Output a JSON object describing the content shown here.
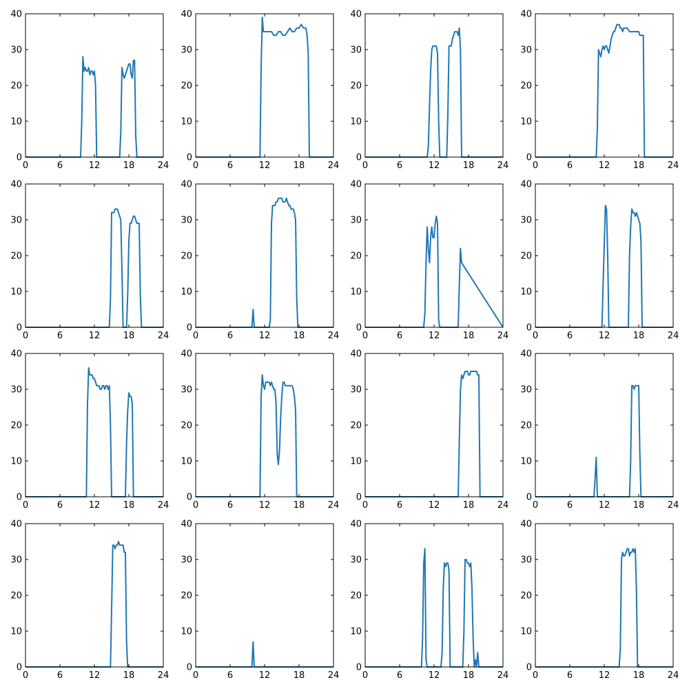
{
  "figure": {
    "rows": 4,
    "cols": 4,
    "line_color": "#1f77b4"
  },
  "chart_data": [
    {
      "type": "line",
      "xlim": [
        0,
        24
      ],
      "ylim": [
        0,
        40
      ],
      "xticks": [
        "0",
        "6",
        "12",
        "18",
        "24"
      ],
      "yticks": [
        "0",
        "10",
        "20",
        "30",
        "40"
      ],
      "x": [
        0,
        9.6,
        9.8,
        10.0,
        10.2,
        10.4,
        10.6,
        10.8,
        11.0,
        11.2,
        11.4,
        11.6,
        11.8,
        12.0,
        12.2,
        12.4,
        16.4,
        16.6,
        16.8,
        17.0,
        17.2,
        17.4,
        17.6,
        17.8,
        18.0,
        18.2,
        18.4,
        18.6,
        18.8,
        19.0,
        19.2,
        19.4,
        19.6,
        24
      ],
      "y": [
        0,
        0,
        10,
        28,
        24,
        25,
        24,
        24,
        25,
        23,
        24,
        24,
        23,
        24,
        20,
        0,
        0,
        7,
        25,
        23,
        22,
        23,
        24,
        25,
        26,
        26,
        23,
        22,
        27,
        27,
        6,
        0,
        0,
        0
      ]
    },
    {
      "type": "line",
      "xlim": [
        0,
        24
      ],
      "ylim": [
        0,
        40
      ],
      "xticks": [
        "0",
        "6",
        "12",
        "18",
        "24"
      ],
      "yticks": [
        "0",
        "10",
        "20",
        "30",
        "40"
      ],
      "x": [
        0,
        11.2,
        11.4,
        11.6,
        11.8,
        12.0,
        12.4,
        12.8,
        13.2,
        13.6,
        14.0,
        14.4,
        14.8,
        15.2,
        15.6,
        16.0,
        16.4,
        16.8,
        17.2,
        17.6,
        18.0,
        18.4,
        18.8,
        19.2,
        19.4,
        19.6,
        19.8,
        24
      ],
      "y": [
        0,
        0,
        25,
        39,
        35,
        35,
        35,
        35,
        35,
        34,
        34,
        35,
        35,
        34,
        34,
        35,
        36,
        35,
        35,
        36,
        36,
        37,
        36,
        36,
        34,
        29,
        0,
        0
      ]
    },
    {
      "type": "line",
      "xlim": [
        0,
        24
      ],
      "ylim": [
        0,
        40
      ],
      "xticks": [
        "0",
        "6",
        "12",
        "18",
        "24"
      ],
      "yticks": [
        "0",
        "10",
        "20",
        "30",
        "40"
      ],
      "x": [
        0,
        10.8,
        11.0,
        11.2,
        11.4,
        11.6,
        11.8,
        12.0,
        12.2,
        12.4,
        12.6,
        12.8,
        13.0,
        13.2,
        14.2,
        14.4,
        14.6,
        14.8,
        15.0,
        15.2,
        15.4,
        15.6,
        15.8,
        16.0,
        16.2,
        16.4,
        16.6,
        16.8,
        24
      ],
      "y": [
        0,
        0,
        3,
        14,
        24,
        30,
        31,
        31,
        31,
        31,
        29,
        10,
        0,
        0,
        0,
        12,
        31,
        31,
        31,
        33,
        34,
        35,
        35,
        35,
        34,
        36,
        30,
        0,
        0
      ]
    },
    {
      "type": "line",
      "xlim": [
        0,
        24
      ],
      "ylim": [
        0,
        40
      ],
      "xticks": [
        "0",
        "6",
        "12",
        "18",
        "24"
      ],
      "yticks": [
        "0",
        "10",
        "20",
        "30",
        "40"
      ],
      "x": [
        0,
        10.6,
        10.8,
        11.0,
        11.2,
        11.4,
        11.6,
        11.8,
        12.0,
        12.2,
        12.4,
        12.6,
        12.8,
        13.0,
        13.2,
        13.4,
        13.6,
        13.8,
        14.0,
        14.2,
        14.4,
        14.6,
        14.8,
        15.0,
        15.2,
        15.4,
        15.6,
        15.8,
        16.0,
        16.4,
        16.8,
        17.2,
        17.6,
        18.0,
        18.2,
        18.4,
        18.6,
        18.8,
        19.0,
        24
      ],
      "y": [
        0,
        0,
        8,
        30,
        29,
        28,
        30,
        31,
        30,
        31,
        31,
        30,
        29,
        31,
        33,
        34,
        35,
        35,
        36,
        37,
        37,
        37,
        36,
        36,
        35,
        36,
        36,
        36,
        36,
        35,
        35,
        35,
        35,
        35,
        34,
        34,
        34,
        34,
        0,
        0
      ]
    },
    {
      "type": "line",
      "xlim": [
        0,
        24
      ],
      "ylim": [
        0,
        40
      ],
      "xticks": [
        "0",
        "6",
        "12",
        "18",
        "24"
      ],
      "yticks": [
        "0",
        "10",
        "20",
        "30",
        "40"
      ],
      "x": [
        0,
        14.6,
        14.8,
        15.0,
        15.2,
        15.4,
        15.6,
        15.8,
        16.0,
        16.2,
        16.4,
        16.6,
        16.8,
        17.0,
        17.6,
        17.8,
        18.0,
        18.2,
        18.4,
        18.6,
        18.8,
        19.0,
        19.2,
        19.4,
        19.6,
        19.8,
        20.0,
        20.2,
        24
      ],
      "y": [
        0,
        0,
        8,
        32,
        32,
        32,
        33,
        33,
        33,
        32,
        31,
        30,
        16,
        0,
        0,
        9,
        24,
        29,
        29,
        30,
        31,
        31,
        30,
        29,
        29,
        29,
        9,
        0,
        0
      ]
    },
    {
      "type": "line",
      "xlim": [
        0,
        24
      ],
      "ylim": [
        0,
        40
      ],
      "xticks": [
        "0",
        "6",
        "12",
        "18",
        "24"
      ],
      "yticks": [
        "0",
        "10",
        "20",
        "30",
        "40"
      ],
      "x": [
        0,
        9.8,
        10.0,
        10.2,
        12.6,
        12.8,
        13.0,
        13.2,
        13.4,
        13.6,
        13.8,
        14.0,
        14.2,
        14.4,
        14.6,
        14.8,
        15.0,
        15.2,
        15.4,
        15.6,
        15.8,
        16.0,
        16.2,
        16.4,
        16.6,
        16.8,
        17.0,
        17.2,
        17.4,
        17.6,
        17.8,
        18.0,
        18.2,
        24
      ],
      "y": [
        0,
        0,
        5,
        0,
        0,
        0,
        2,
        29,
        34,
        34,
        34,
        35,
        35,
        36,
        36,
        36,
        36,
        35,
        35,
        35,
        36,
        35,
        34,
        34,
        33,
        33,
        33,
        32,
        30,
        8,
        0,
        0,
        0,
        0
      ]
    },
    {
      "type": "line",
      "xlim": [
        0,
        24
      ],
      "ylim": [
        0,
        40
      ],
      "xticks": [
        "0",
        "6",
        "12",
        "18",
        "24"
      ],
      "yticks": [
        "0",
        "10",
        "20",
        "30",
        "40"
      ],
      "x": [
        0,
        10.2,
        10.4,
        10.6,
        10.8,
        11.0,
        11.2,
        11.4,
        11.6,
        11.8,
        12.0,
        12.2,
        12.4,
        12.6,
        12.8,
        13.0,
        16.2,
        16.4,
        16.6,
        16.8,
        24
      ],
      "y": [
        0,
        0,
        4,
        18,
        28,
        22,
        18,
        25,
        28,
        25,
        25,
        29,
        31,
        29,
        2,
        0,
        0,
        12,
        22,
        18,
        0
      ]
    },
    {
      "type": "line",
      "xlim": [
        0,
        24
      ],
      "ylim": [
        0,
        40
      ],
      "xticks": [
        "0",
        "6",
        "12",
        "18",
        "24"
      ],
      "yticks": [
        "0",
        "10",
        "20",
        "30",
        "40"
      ],
      "x": [
        0,
        11.6,
        11.8,
        12.0,
        12.2,
        12.4,
        12.6,
        12.8,
        16.2,
        16.4,
        16.6,
        16.8,
        17.0,
        17.2,
        17.4,
        17.6,
        17.8,
        18.0,
        18.2,
        18.4,
        18.6,
        24
      ],
      "y": [
        0,
        0,
        12,
        23,
        34,
        33,
        20,
        0,
        0,
        20,
        28,
        33,
        32,
        32,
        31,
        32,
        31,
        30,
        29,
        24,
        0,
        0
      ]
    },
    {
      "type": "line",
      "xlim": [
        0,
        24
      ],
      "ylim": [
        0,
        40
      ],
      "xticks": [
        "0",
        "6",
        "12",
        "18",
        "24"
      ],
      "yticks": [
        "0",
        "10",
        "20",
        "30",
        "40"
      ],
      "x": [
        0,
        10.6,
        10.8,
        11.0,
        11.2,
        11.4,
        11.6,
        11.8,
        12.0,
        12.2,
        12.4,
        12.6,
        12.8,
        13.0,
        13.2,
        13.4,
        13.6,
        13.8,
        14.0,
        14.2,
        14.4,
        14.6,
        14.8,
        15.0,
        17.4,
        17.6,
        17.8,
        18.0,
        18.2,
        18.4,
        18.6,
        18.8,
        24
      ],
      "y": [
        0,
        0,
        26,
        36,
        34,
        34,
        34,
        33,
        33,
        32,
        31,
        31,
        31,
        30,
        30,
        31,
        31,
        30,
        31,
        31,
        30,
        31,
        20,
        0,
        0,
        15,
        24,
        29,
        28,
        28,
        26,
        0,
        0
      ]
    },
    {
      "type": "line",
      "xlim": [
        0,
        24
      ],
      "ylim": [
        0,
        40
      ],
      "xticks": [
        "0",
        "6",
        "12",
        "18",
        "24"
      ],
      "yticks": [
        "0",
        "10",
        "20",
        "30",
        "40"
      ],
      "x": [
        0,
        11.2,
        11.4,
        11.6,
        11.8,
        12.0,
        12.2,
        12.4,
        12.6,
        12.8,
        13.0,
        13.2,
        13.4,
        13.6,
        13.8,
        14.0,
        14.2,
        14.4,
        14.6,
        14.8,
        15.0,
        15.2,
        15.4,
        15.6,
        15.8,
        16.0,
        16.4,
        16.8,
        17.0,
        17.2,
        17.4,
        17.6,
        24
      ],
      "y": [
        0,
        0,
        28,
        34,
        31,
        30,
        32,
        32,
        32,
        32,
        31,
        32,
        31,
        30,
        30,
        26,
        12,
        9,
        13,
        22,
        28,
        32,
        32,
        31,
        31,
        31,
        31,
        31,
        30,
        28,
        24,
        0,
        0
      ]
    },
    {
      "type": "line",
      "xlim": [
        0,
        24
      ],
      "ylim": [
        0,
        40
      ],
      "xticks": [
        "0",
        "6",
        "12",
        "18",
        "24"
      ],
      "yticks": [
        "0",
        "10",
        "20",
        "30",
        "40"
      ],
      "x": [
        0,
        16.2,
        16.4,
        16.6,
        16.8,
        17.0,
        17.2,
        17.4,
        17.6,
        17.8,
        18.0,
        18.2,
        18.4,
        18.6,
        18.8,
        19.0,
        19.2,
        19.4,
        19.6,
        19.8,
        20.0,
        20.2,
        24
      ],
      "y": [
        0,
        0,
        16,
        30,
        34,
        33,
        34,
        35,
        35,
        35,
        34,
        34,
        35,
        35,
        35,
        35,
        35,
        35,
        34,
        34,
        0,
        0,
        0
      ]
    },
    {
      "type": "line",
      "xlim": [
        0,
        24
      ],
      "ylim": [
        0,
        40
      ],
      "xticks": [
        "0",
        "6",
        "12",
        "18",
        "24"
      ],
      "yticks": [
        "0",
        "10",
        "20",
        "30",
        "40"
      ],
      "x": [
        0,
        10.2,
        10.4,
        10.6,
        10.8,
        16.2,
        16.4,
        16.6,
        16.8,
        17.0,
        17.2,
        17.4,
        17.6,
        17.8,
        18.0,
        18.2,
        18.4,
        24
      ],
      "y": [
        0,
        0,
        5,
        11,
        0,
        0,
        0,
        10,
        31,
        31,
        30,
        31,
        31,
        31,
        31,
        12,
        0,
        0
      ]
    },
    {
      "type": "line",
      "xlim": [
        0,
        24
      ],
      "ylim": [
        0,
        40
      ],
      "xticks": [
        "0",
        "6",
        "12",
        "18",
        "24"
      ],
      "yticks": [
        "0",
        "10",
        "20",
        "30",
        "40"
      ],
      "x": [
        0,
        14.8,
        15.0,
        15.2,
        15.4,
        15.6,
        15.8,
        16.0,
        16.2,
        16.4,
        16.6,
        16.8,
        17.0,
        17.2,
        17.4,
        17.6,
        17.8,
        18.0,
        24
      ],
      "y": [
        0,
        0,
        16,
        34,
        34,
        33,
        34,
        34,
        35,
        34,
        34,
        34,
        34,
        32,
        32,
        7,
        0,
        0,
        0
      ]
    },
    {
      "type": "line",
      "xlim": [
        0,
        24
      ],
      "ylim": [
        0,
        40
      ],
      "xticks": [
        "0",
        "6",
        "12",
        "18",
        "24"
      ],
      "yticks": [
        "0",
        "10",
        "20",
        "30",
        "40"
      ],
      "x": [
        0,
        9.8,
        10.0,
        10.2,
        24
      ],
      "y": [
        0,
        0,
        7,
        0,
        0
      ]
    },
    {
      "type": "line",
      "xlim": [
        0,
        24
      ],
      "ylim": [
        0,
        40
      ],
      "xticks": [
        "0",
        "6",
        "12",
        "18",
        "24"
      ],
      "yticks": [
        "0",
        "10",
        "20",
        "30",
        "40"
      ],
      "x": [
        0,
        9.8,
        10.0,
        10.2,
        10.4,
        10.6,
        10.8,
        11.0,
        13.0,
        13.2,
        13.4,
        13.6,
        13.8,
        14.0,
        14.2,
        14.4,
        14.6,
        14.8,
        15.0,
        17.0,
        17.2,
        17.4,
        17.6,
        17.8,
        18.0,
        18.2,
        18.4,
        18.6,
        18.8,
        19.0,
        19.2,
        19.4,
        19.6,
        19.8,
        20.0,
        24
      ],
      "y": [
        0,
        0,
        8,
        29,
        33,
        2,
        0,
        0,
        0,
        0,
        4,
        22,
        29,
        28,
        29,
        29,
        27,
        0,
        0,
        0,
        10,
        30,
        30,
        29,
        29,
        28,
        29,
        22,
        8,
        0,
        2,
        0,
        4,
        0,
        0,
        0
      ]
    },
    {
      "type": "line",
      "xlim": [
        0,
        24
      ],
      "ylim": [
        0,
        40
      ],
      "xticks": [
        "0",
        "6",
        "12",
        "18",
        "24"
      ],
      "yticks": [
        "0",
        "10",
        "20",
        "30",
        "40"
      ],
      "x": [
        0,
        14.6,
        14.8,
        15.0,
        15.2,
        15.4,
        15.6,
        15.8,
        16.0,
        16.2,
        16.4,
        16.6,
        16.8,
        17.0,
        17.2,
        17.4,
        17.6,
        17.8,
        18.0,
        24
      ],
      "y": [
        0,
        0,
        5,
        30,
        32,
        31,
        31,
        32,
        33,
        33,
        31,
        32,
        32,
        33,
        32,
        33,
        22,
        0,
        0,
        0
      ]
    }
  ]
}
